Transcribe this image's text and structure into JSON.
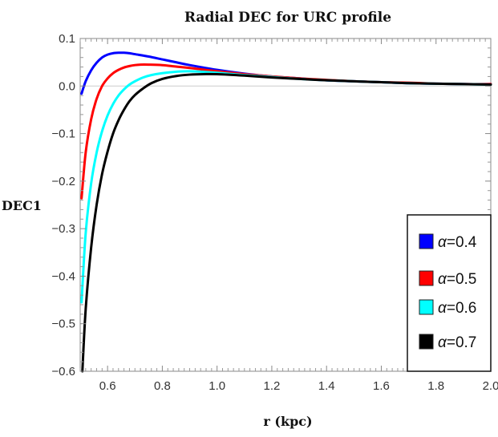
{
  "chart_data": {
    "type": "line",
    "title": "Radial DEC for URC profile",
    "xlabel": "r (kpc)",
    "ylabel": "DEC1",
    "xlim": [
      0.5,
      2.0
    ],
    "ylim": [
      -0.6,
      0.1
    ],
    "xticks": [
      0.6,
      0.8,
      1.0,
      1.2,
      1.4,
      1.6,
      1.8,
      2.0
    ],
    "xtick_labels": [
      "0.6",
      "0.8",
      "1.0",
      "1.2",
      "1.4",
      "1.6",
      "1.8",
      "2.0"
    ],
    "yticks": [
      0.1,
      0.0,
      -0.1,
      -0.2,
      -0.3,
      -0.4,
      -0.5,
      -0.6
    ],
    "ytick_labels": [
      "0.1",
      "0.0",
      "−0.1",
      "−0.2",
      "−0.3",
      "−0.4",
      "−0.5",
      "−0.6"
    ],
    "grid": false,
    "legend_position": "bottom-right",
    "series": [
      {
        "name": "α=0.4",
        "alpha_symbol": "α",
        "alpha_value": "=0.4",
        "color": "#0000ff",
        "x": [
          0.505,
          0.52,
          0.54,
          0.56,
          0.58,
          0.6,
          0.62,
          0.64,
          0.66,
          0.68,
          0.7,
          0.75,
          0.8,
          0.85,
          0.9,
          1.0,
          1.1,
          1.2,
          1.3,
          1.4,
          1.5,
          1.6,
          1.7,
          1.8,
          1.9,
          2.0
        ],
        "y": [
          -0.016,
          0.01,
          0.033,
          0.049,
          0.06,
          0.066,
          0.069,
          0.07,
          0.07,
          0.069,
          0.067,
          0.062,
          0.056,
          0.05,
          0.044,
          0.034,
          0.026,
          0.02,
          0.016,
          0.012,
          0.01,
          0.008,
          0.006,
          0.005,
          0.004,
          0.004
        ]
      },
      {
        "name": "α=0.5",
        "alpha_symbol": "α",
        "alpha_value": "=0.5",
        "color": "#ff0000",
        "x": [
          0.505,
          0.52,
          0.54,
          0.56,
          0.58,
          0.6,
          0.62,
          0.64,
          0.66,
          0.68,
          0.7,
          0.72,
          0.75,
          0.8,
          0.85,
          0.9,
          1.0,
          1.1,
          1.2,
          1.3,
          1.4,
          1.5,
          1.6,
          1.7,
          1.8,
          1.9,
          2.0
        ],
        "y": [
          -0.236,
          -0.14,
          -0.07,
          -0.027,
          0.0,
          0.016,
          0.027,
          0.034,
          0.039,
          0.042,
          0.044,
          0.045,
          0.045,
          0.044,
          0.041,
          0.038,
          0.031,
          0.025,
          0.02,
          0.016,
          0.013,
          0.01,
          0.008,
          0.007,
          0.005,
          0.004,
          0.004
        ]
      },
      {
        "name": "α=0.6",
        "alpha_symbol": "α",
        "alpha_value": "=0.6",
        "color": "#00ffff",
        "x": [
          0.505,
          0.52,
          0.54,
          0.56,
          0.58,
          0.6,
          0.62,
          0.64,
          0.66,
          0.68,
          0.7,
          0.73,
          0.76,
          0.8,
          0.85,
          0.9,
          1.0,
          1.1,
          1.2,
          1.3,
          1.4,
          1.5,
          1.6,
          1.7,
          1.8,
          1.9,
          2.0
        ],
        "y": [
          -0.455,
          -0.31,
          -0.205,
          -0.14,
          -0.095,
          -0.062,
          -0.038,
          -0.02,
          -0.007,
          0.003,
          0.01,
          0.018,
          0.023,
          0.027,
          0.03,
          0.031,
          0.028,
          0.023,
          0.019,
          0.015,
          0.012,
          0.01,
          0.008,
          0.006,
          0.005,
          0.004,
          0.003
        ]
      },
      {
        "name": "α=0.7",
        "alpha_symbol": "α",
        "alpha_value": "=0.7",
        "color": "#000000",
        "x": [
          0.508,
          0.52,
          0.54,
          0.56,
          0.58,
          0.6,
          0.62,
          0.64,
          0.66,
          0.68,
          0.7,
          0.73,
          0.76,
          0.8,
          0.85,
          0.9,
          0.95,
          1.0,
          1.1,
          1.2,
          1.3,
          1.4,
          1.5,
          1.6,
          1.7,
          1.8,
          1.9,
          2.0
        ],
        "y": [
          -0.6,
          -0.47,
          -0.34,
          -0.25,
          -0.185,
          -0.138,
          -0.1,
          -0.072,
          -0.05,
          -0.032,
          -0.019,
          -0.005,
          0.006,
          0.015,
          0.021,
          0.024,
          0.025,
          0.025,
          0.022,
          0.018,
          0.015,
          0.012,
          0.01,
          0.008,
          0.006,
          0.005,
          0.004,
          0.003
        ]
      }
    ]
  }
}
